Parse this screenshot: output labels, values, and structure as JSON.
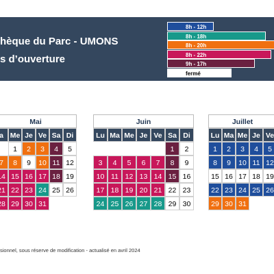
{
  "header": {
    "title": "hèque du Parc - UMONS",
    "subtitle": "s d’ouverture"
  },
  "legend": [
    {
      "label": "8h - 12h",
      "color": "#1f4e9c"
    },
    {
      "label": "8h - 18h",
      "color": "#17998a"
    },
    {
      "label": "8h - 20h",
      "color": "#f07010"
    },
    {
      "label": "8h - 22h",
      "color": "#c8175a"
    },
    {
      "label": "9h - 17h",
      "color": "#6a2040"
    },
    {
      "label": "fermé",
      "color": "#ffffff"
    }
  ],
  "months": [
    {
      "name": "Mai",
      "weekdays": [
        "a",
        "Me",
        "Je",
        "Ve",
        "Sa",
        "Di"
      ],
      "weeks": [
        [
          null,
          {
            "day": "1",
            "color": "#ffffff"
          },
          {
            "day": "2",
            "color": "#f07010"
          },
          {
            "day": "3",
            "color": "#f07010"
          },
          {
            "day": "4",
            "color": "#6a2040"
          },
          {
            "day": "5",
            "color": "#ffffff"
          }
        ],
        [
          {
            "day": "7",
            "color": "#f07010"
          },
          {
            "day": "8",
            "color": "#f07010"
          },
          {
            "day": "9",
            "color": "#ffffff"
          },
          {
            "day": "10",
            "color": "#f07010"
          },
          {
            "day": "11",
            "color": "#6a2040"
          },
          {
            "day": "12",
            "color": "#ffffff"
          }
        ],
        [
          {
            "day": "14",
            "color": "#c8175a"
          },
          {
            "day": "15",
            "color": "#c8175a"
          },
          {
            "day": "16",
            "color": "#c8175a"
          },
          {
            "day": "17",
            "color": "#c8175a"
          },
          {
            "day": "18",
            "color": "#6a2040"
          },
          {
            "day": "19",
            "color": "#ffffff"
          }
        ],
        [
          {
            "day": "21",
            "color": "#c8175a"
          },
          {
            "day": "22",
            "color": "#c8175a"
          },
          {
            "day": "23",
            "color": "#c8175a"
          },
          {
            "day": "24",
            "color": "#17998a"
          },
          {
            "day": "25",
            "color": "#ffffff"
          },
          {
            "day": "26",
            "color": "#ffffff"
          }
        ],
        [
          {
            "day": "28",
            "color": "#c8175a"
          },
          {
            "day": "29",
            "color": "#c8175a"
          },
          {
            "day": "30",
            "color": "#c8175a"
          },
          {
            "day": "31",
            "color": "#c8175a"
          },
          null,
          null
        ]
      ]
    },
    {
      "name": "Juin",
      "weekdays": [
        "Lu",
        "Ma",
        "Me",
        "Je",
        "Ve",
        "Sa",
        "Di"
      ],
      "weeks": [
        [
          null,
          null,
          null,
          null,
          null,
          {
            "day": "1",
            "color": "#6a2040"
          },
          {
            "day": "2",
            "color": "#ffffff"
          }
        ],
        [
          {
            "day": "3",
            "color": "#c8175a"
          },
          {
            "day": "4",
            "color": "#c8175a"
          },
          {
            "day": "5",
            "color": "#c8175a"
          },
          {
            "day": "6",
            "color": "#c8175a"
          },
          {
            "day": "7",
            "color": "#c8175a"
          },
          {
            "day": "8",
            "color": "#6a2040"
          },
          {
            "day": "9",
            "color": "#ffffff"
          }
        ],
        [
          {
            "day": "10",
            "color": "#c8175a"
          },
          {
            "day": "11",
            "color": "#c8175a"
          },
          {
            "day": "12",
            "color": "#c8175a"
          },
          {
            "day": "13",
            "color": "#c8175a"
          },
          {
            "day": "14",
            "color": "#c8175a"
          },
          {
            "day": "15",
            "color": "#6a2040"
          },
          {
            "day": "16",
            "color": "#ffffff"
          }
        ],
        [
          {
            "day": "17",
            "color": "#c8175a"
          },
          {
            "day": "18",
            "color": "#c8175a"
          },
          {
            "day": "19",
            "color": "#c8175a"
          },
          {
            "day": "20",
            "color": "#c8175a"
          },
          {
            "day": "21",
            "color": "#c8175a"
          },
          {
            "day": "22",
            "color": "#ffffff"
          },
          {
            "day": "23",
            "color": "#ffffff"
          }
        ],
        [
          {
            "day": "24",
            "color": "#17998a"
          },
          {
            "day": "25",
            "color": "#17998a"
          },
          {
            "day": "26",
            "color": "#17998a"
          },
          {
            "day": "27",
            "color": "#17998a"
          },
          {
            "day": "28",
            "color": "#17998a"
          },
          {
            "day": "29",
            "color": "#ffffff"
          },
          {
            "day": "30",
            "color": "#ffffff"
          }
        ]
      ]
    },
    {
      "name": "Juillet",
      "weekdays": [
        "Lu",
        "Ma",
        "Me",
        "Je",
        "Ve"
      ],
      "weeks": [
        [
          {
            "day": "1",
            "color": "#1f4e9c"
          },
          {
            "day": "2",
            "color": "#1f4e9c"
          },
          {
            "day": "3",
            "color": "#1f4e9c"
          },
          {
            "day": "4",
            "color": "#1f4e9c"
          },
          {
            "day": "5",
            "color": "#1f4e9c"
          }
        ],
        [
          {
            "day": "8",
            "color": "#1f4e9c"
          },
          {
            "day": "9",
            "color": "#1f4e9c"
          },
          {
            "day": "10",
            "color": "#1f4e9c"
          },
          {
            "day": "11",
            "color": "#1f4e9c"
          },
          {
            "day": "12",
            "color": "#1f4e9c"
          }
        ],
        [
          {
            "day": "15",
            "color": "#ffffff"
          },
          {
            "day": "16",
            "color": "#ffffff"
          },
          {
            "day": "17",
            "color": "#ffffff"
          },
          {
            "day": "18",
            "color": "#ffffff"
          },
          {
            "day": "19",
            "color": "#ffffff"
          }
        ],
        [
          {
            "day": "22",
            "color": "#1f4e9c"
          },
          {
            "day": "23",
            "color": "#1f4e9c"
          },
          {
            "day": "24",
            "color": "#1f4e9c"
          },
          {
            "day": "25",
            "color": "#1f4e9c"
          },
          {
            "day": "26",
            "color": "#1f4e9c"
          }
        ],
        [
          {
            "day": "29",
            "color": "#f07010"
          },
          {
            "day": "30",
            "color": "#f07010"
          },
          {
            "day": "31",
            "color": "#f07010"
          },
          null,
          null
        ]
      ]
    }
  ],
  "footer": "sionnel, sous réserve de modification - actualisé en avril 2024"
}
